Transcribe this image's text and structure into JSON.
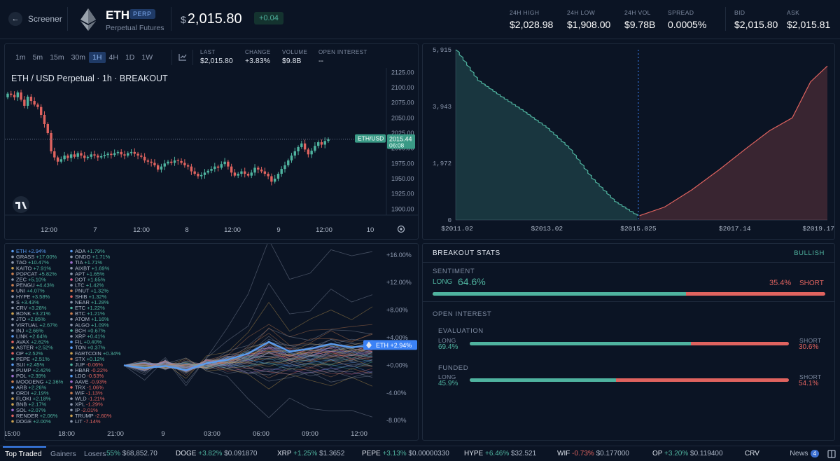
{
  "header": {
    "back_label": "Screener",
    "symbol": "ETH",
    "badge": "PERP",
    "subtitle": "Perpetual Futures",
    "price_currency": "$",
    "price": "2,015.80",
    "change": "+0.04",
    "stats": [
      {
        "label": "24H HIGH",
        "value": "$2,028.98"
      },
      {
        "label": "24H LOW",
        "value": "$1,908.00"
      },
      {
        "label": "24H VOL",
        "value": "$9.78B"
      },
      {
        "label": "SPREAD",
        "value": "0.0005%"
      }
    ],
    "bid_label": "BID",
    "bid": "$2,015.80",
    "ask_label": "ASK",
    "ask": "$2,015.81"
  },
  "price_chart": {
    "timeframes": [
      "1m",
      "5m",
      "15m",
      "30m",
      "1H",
      "4H",
      "1D",
      "1W"
    ],
    "active_timeframe": "1H",
    "stats": [
      {
        "label": "LAST",
        "value": "$2,015.80"
      },
      {
        "label": "CHANGE",
        "value": "+3.83%"
      },
      {
        "label": "VOLUME",
        "value": "$9.8B"
      },
      {
        "label": "OPEN INTEREST",
        "value": "--"
      }
    ],
    "title": "ETH / USD Perpetual · 1h · BREAKOUT",
    "price_tag_label": "ETH/USD",
    "price_tag_value": "2015.44",
    "price_tag_time": "06:08"
  },
  "depth_chart": {
    "x_labels": [
      "$2011.02",
      "$2013.02",
      "$2015.025",
      "$2017.14",
      "$2019.17"
    ]
  },
  "performance": {
    "left_list": [
      {
        "name": "ETH",
        "change": "+2.94%",
        "color": "#5a9cf0"
      },
      {
        "name": "GRASS",
        "change": "+17.00%",
        "color": "#8e9ab0"
      },
      {
        "name": "TAO",
        "change": "+10.47%",
        "color": "#8e9ab0"
      },
      {
        "name": "KAITO",
        "change": "+7.91%",
        "color": "#c9a050"
      },
      {
        "name": "POPCAT",
        "change": "+5.82%",
        "color": "#c97f50"
      },
      {
        "name": "ZEC",
        "change": "+5.10%",
        "color": "#8e9ab0"
      },
      {
        "name": "PENGU",
        "change": "+4.43%",
        "color": "#c97f50"
      },
      {
        "name": "UNI",
        "change": "+4.07%",
        "color": "#c97f50"
      },
      {
        "name": "HYPE",
        "change": "+3.58%",
        "color": "#8e9ab0"
      },
      {
        "name": "S",
        "change": "+3.43%",
        "color": "#8e9ab0"
      },
      {
        "name": "CRV",
        "change": "+3.28%",
        "color": "#8e9ab0"
      },
      {
        "name": "BONK",
        "change": "+3.21%",
        "color": "#c9a050"
      },
      {
        "name": "JTO",
        "change": "+2.85%",
        "color": "#8e9ab0"
      },
      {
        "name": "VIRTUAL",
        "change": "+2.67%",
        "color": "#8e9ab0"
      },
      {
        "name": "INJ",
        "change": "+2.66%",
        "color": "#8e9ab0"
      },
      {
        "name": "LINK",
        "change": "+2.64%",
        "color": "#5a9cf0"
      },
      {
        "name": "AVAX",
        "change": "+2.62%",
        "color": "#e0635f"
      },
      {
        "name": "ASTER",
        "change": "+2.52%",
        "color": "#c9a050"
      },
      {
        "name": "OP",
        "change": "+2.52%",
        "color": "#e0635f"
      },
      {
        "name": "PEPE",
        "change": "+2.51%",
        "color": "#4fb39f"
      },
      {
        "name": "SUI",
        "change": "+2.45%",
        "color": "#5a9cf0"
      },
      {
        "name": "PUMP",
        "change": "+2.42%",
        "color": "#8e9ab0"
      },
      {
        "name": "POL",
        "change": "+2.39%",
        "color": "#a070d0"
      },
      {
        "name": "MOODENG",
        "change": "+2.36%",
        "color": "#c97f50"
      },
      {
        "name": "ARB",
        "change": "+2.26%",
        "color": "#5a9cf0"
      },
      {
        "name": "ORDI",
        "change": "+2.19%",
        "color": "#8e9ab0"
      },
      {
        "name": "FLOKI",
        "change": "+2.18%",
        "color": "#c9a050"
      },
      {
        "name": "BNB",
        "change": "+2.17%",
        "color": "#c9a050"
      },
      {
        "name": "SOL",
        "change": "+2.07%",
        "color": "#a070d0"
      },
      {
        "name": "RENDER",
        "change": "+2.06%",
        "color": "#e0635f"
      },
      {
        "name": "DOGE",
        "change": "+2.00%",
        "color": "#c9a050"
      }
    ],
    "right_list": [
      {
        "name": "ADA",
        "change": "+1.79%",
        "color": "#5a9cf0"
      },
      {
        "name": "ONDO",
        "change": "+1.71%",
        "color": "#8e9ab0"
      },
      {
        "name": "TIA",
        "change": "+1.71%",
        "color": "#a070d0"
      },
      {
        "name": "AIXBT",
        "change": "+1.69%",
        "color": "#8e9ab0"
      },
      {
        "name": "APT",
        "change": "+1.65%",
        "color": "#8e9ab0"
      },
      {
        "name": "DOT",
        "change": "+1.65%",
        "color": "#e06090"
      },
      {
        "name": "LTC",
        "change": "+1.42%",
        "color": "#8e9ab0"
      },
      {
        "name": "PNUT",
        "change": "+1.32%",
        "color": "#c97f50"
      },
      {
        "name": "SHIB",
        "change": "+1.32%",
        "color": "#e0635f"
      },
      {
        "name": "NEAR",
        "change": "+1.28%",
        "color": "#8e9ab0"
      },
      {
        "name": "ETC",
        "change": "+1.22%",
        "color": "#4fb39f"
      },
      {
        "name": "BTC",
        "change": "+1.21%",
        "color": "#c97f50"
      },
      {
        "name": "ATOM",
        "change": "+1.16%",
        "color": "#8e9ab0"
      },
      {
        "name": "ALGO",
        "change": "+1.09%",
        "color": "#8e9ab0"
      },
      {
        "name": "BCH",
        "change": "+0.67%",
        "color": "#4fb39f"
      },
      {
        "name": "XRP",
        "change": "+0.41%",
        "color": "#8e9ab0"
      },
      {
        "name": "FIL",
        "change": "+0.40%",
        "color": "#5a9cf0"
      },
      {
        "name": "TON",
        "change": "+0.37%",
        "color": "#5a9cf0"
      },
      {
        "name": "FARTCOIN",
        "change": "+0.34%",
        "color": "#c9a050"
      },
      {
        "name": "STX",
        "change": "+0.12%",
        "color": "#c97f50"
      },
      {
        "name": "JUP",
        "change": "-0.06%",
        "color": "#4fb39f"
      },
      {
        "name": "HBAR",
        "change": "-0.22%",
        "color": "#8e9ab0"
      },
      {
        "name": "LDO",
        "change": "-0.53%",
        "color": "#5a9cf0"
      },
      {
        "name": "AAVE",
        "change": "-0.93%",
        "color": "#a070d0"
      },
      {
        "name": "TRX",
        "change": "-1.06%",
        "color": "#e0635f"
      },
      {
        "name": "WIF",
        "change": "-1.13%",
        "color": "#c97f50"
      },
      {
        "name": "WLD",
        "change": "-1.21%",
        "color": "#8e9ab0"
      },
      {
        "name": "XPL",
        "change": "-1.29%",
        "color": "#8e9ab0"
      },
      {
        "name": "IP",
        "change": "-2.01%",
        "color": "#8e9ab0"
      },
      {
        "name": "TRUMP",
        "change": "-2.60%",
        "color": "#c9a050"
      },
      {
        "name": "LIT",
        "change": "-7.14%",
        "color": "#8e9ab0"
      }
    ],
    "eth_tag": "ETH +2.94%"
  },
  "breakout_stats": {
    "title": "BREAKOUT STATS",
    "badge": "BULLISH",
    "sentiment_label": "SENTIMENT",
    "long_label": "LONG",
    "long_value": "64.6%",
    "short_value": "35.4%",
    "short_label": "SHORT",
    "sentiment_long_pct": 64.6,
    "oi_label": "OPEN INTEREST",
    "evaluation": {
      "label": "EVALUATION",
      "long_label": "LONG",
      "long_value": "69.4%",
      "short_label": "SHORT",
      "short_value": "30.6%",
      "long_pct": 69.4
    },
    "funded": {
      "label": "FUNDED",
      "long_label": "LONG",
      "long_value": "45.9%",
      "short_label": "SHORT",
      "short_value": "54.1%",
      "long_pct": 45.9
    }
  },
  "ticker": {
    "tabs": [
      "Top Traded",
      "Gainers",
      "Losers"
    ],
    "items": [
      {
        "name": "",
        "change": "55%",
        "price": "$68,852.70",
        "dir": "up"
      },
      {
        "name": "DOGE",
        "change": "+3.82%",
        "price": "$0.091870",
        "dir": "up"
      },
      {
        "name": "XRP",
        "change": "+1.25%",
        "price": "$1.3652",
        "dir": "up"
      },
      {
        "name": "PEPE",
        "change": "+3.13%",
        "price": "$0.00000330",
        "dir": "up"
      },
      {
        "name": "HYPE",
        "change": "+6.46%",
        "price": "$32.521",
        "dir": "up"
      },
      {
        "name": "WIF",
        "change": "-0.73%",
        "price": "$0.177000",
        "dir": "down"
      },
      {
        "name": "OP",
        "change": "+3.20%",
        "price": "$0.119400",
        "dir": "up"
      },
      {
        "name": "CRV",
        "change": "",
        "price": "",
        "dir": "up"
      }
    ],
    "news_label": "News",
    "news_count": "4"
  },
  "chart_data": [
    {
      "type": "candlestick",
      "title": "ETH / USD Perpetual · 1h · BREAKOUT",
      "y_ticks": [
        1900,
        1925,
        1950,
        1975,
        2000,
        2025,
        2050,
        2075,
        2100,
        2125
      ],
      "ylim": [
        1890,
        2130
      ],
      "x_labels": [
        "12:00",
        "7",
        "12:00",
        "8",
        "12:00",
        "9",
        "12:00",
        "10"
      ],
      "closes": [
        2090,
        2088,
        2084,
        2092,
        2080,
        2070,
        2085,
        2078,
        2072,
        2068,
        2055,
        2040,
        2025,
        1995,
        1985,
        1978,
        1982,
        1988,
        1984,
        1990,
        1986,
        1992,
        1988,
        1984,
        1986,
        1990,
        1988,
        1985,
        1987,
        1989,
        1991,
        1989,
        1992,
        1994,
        1990,
        1988,
        1992,
        1994,
        1991,
        1988,
        1986,
        1980,
        1978,
        1976,
        1972,
        1965,
        1970,
        1975,
        1978,
        1976,
        1980,
        1979,
        1976,
        1972,
        1970,
        1962,
        1958,
        1954,
        1956,
        1960,
        1963,
        1966,
        1970,
        1968,
        1974,
        1978,
        1970,
        1960,
        1955,
        1958,
        1962,
        1958,
        1955,
        1960,
        1968,
        1965,
        1962,
        1958,
        1954,
        1945,
        1950,
        1958,
        1966,
        1972,
        1980,
        1988,
        1995,
        2002,
        2008,
        1998,
        1990,
        1996,
        2004,
        2010,
        2006,
        2012,
        2015
      ]
    },
    {
      "type": "area",
      "title": "Order book depth",
      "y_ticks": [
        0,
        1972,
        3943,
        5915
      ],
      "x_labels": [
        "$2011.02",
        "$2013.02",
        "$2015.025",
        "$2017.14",
        "$2019.17"
      ],
      "xlim": [
        2011.02,
        2019.17
      ],
      "mid": 2015.025,
      "bids_x": [
        2011.02,
        2011.5,
        2012.0,
        2012.5,
        2013.0,
        2013.5,
        2014.0,
        2014.5,
        2015.0
      ],
      "bids_y": [
        5915,
        4850,
        4300,
        3780,
        3220,
        2500,
        1450,
        650,
        150
      ],
      "asks_x": [
        2015.05,
        2015.6,
        2016.2,
        2016.8,
        2017.4,
        2017.9,
        2018.4,
        2018.8,
        2019.17
      ],
      "asks_y": [
        150,
        450,
        1050,
        1750,
        2500,
        3100,
        3550,
        4800,
        5350
      ]
    },
    {
      "type": "line",
      "title": "Relative performance",
      "y_ticks": [
        "+16.00%",
        "+12.00%",
        "+8.00%",
        "+4.00%",
        "+0.00%",
        "-4.00%",
        "-8.00%"
      ],
      "ylim": [
        -9,
        17
      ],
      "x_labels": [
        "15:00",
        "18:00",
        "21:00",
        "9",
        "03:00",
        "06:00",
        "09:00",
        "12:00"
      ],
      "eth_series": [
        0.0,
        -0.4,
        -0.1,
        -0.7,
        0.3,
        0.8,
        1.7,
        3.4,
        2.0,
        2.4,
        3.1,
        2.6,
        2.94
      ]
    }
  ]
}
